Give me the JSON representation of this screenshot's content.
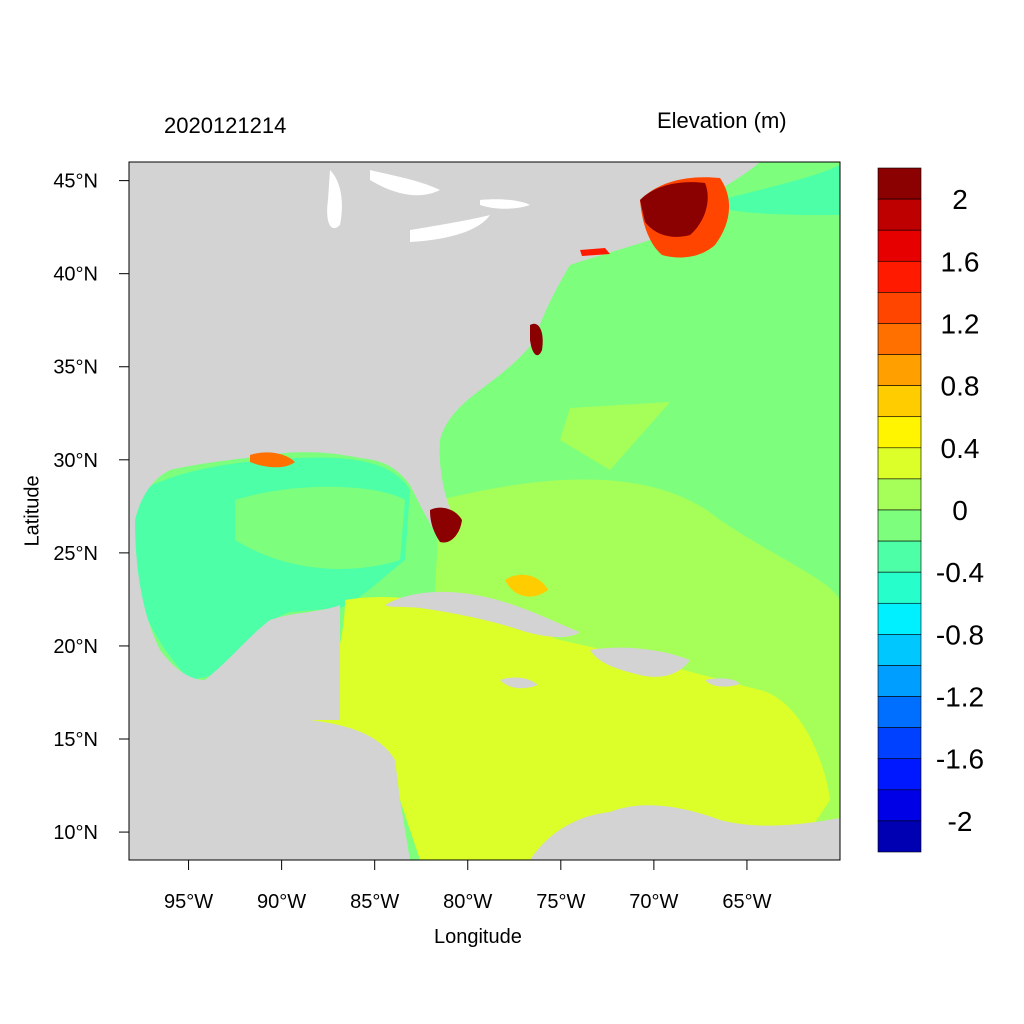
{
  "header": {
    "run_label": "2020121214",
    "variable_label": "Elevation (m)"
  },
  "axes": {
    "x_title": "Longitude",
    "y_title": "Latitude",
    "x_ticks": [
      "95°W",
      "90°W",
      "85°W",
      "80°W",
      "75°W",
      "70°W",
      "65°W"
    ],
    "y_ticks": [
      "45°N",
      "40°N",
      "35°N",
      "30°N",
      "25°N",
      "20°N",
      "15°N",
      "10°N"
    ]
  },
  "colorbar": {
    "labels": [
      "2",
      "1.6",
      "1.2",
      "0.8",
      "0.4",
      "0",
      "-0.4",
      "-0.8",
      "-1.2",
      "-1.6",
      "-2"
    ],
    "colors": [
      "#8b0000",
      "#bf0000",
      "#e60000",
      "#ff1a00",
      "#ff4500",
      "#ff7000",
      "#ff9f00",
      "#ffcc00",
      "#fff500",
      "#dcff29",
      "#a6ff59",
      "#7dff7d",
      "#4dffa6",
      "#26ffcc",
      "#00f0ff",
      "#00c8ff",
      "#009fff",
      "#006fff",
      "#0040ff",
      "#0018ff",
      "#0000e6",
      "#0000b3"
    ]
  },
  "map_colors": {
    "land": "#d3d3d3",
    "lakes": "#ffffff",
    "ocean_zero": "#7dff7d",
    "gulf": "#4dffa6",
    "caribbean": "#dcff29",
    "atlantic_positive": "#a6ff59",
    "surge_high": "#8b0000"
  }
}
